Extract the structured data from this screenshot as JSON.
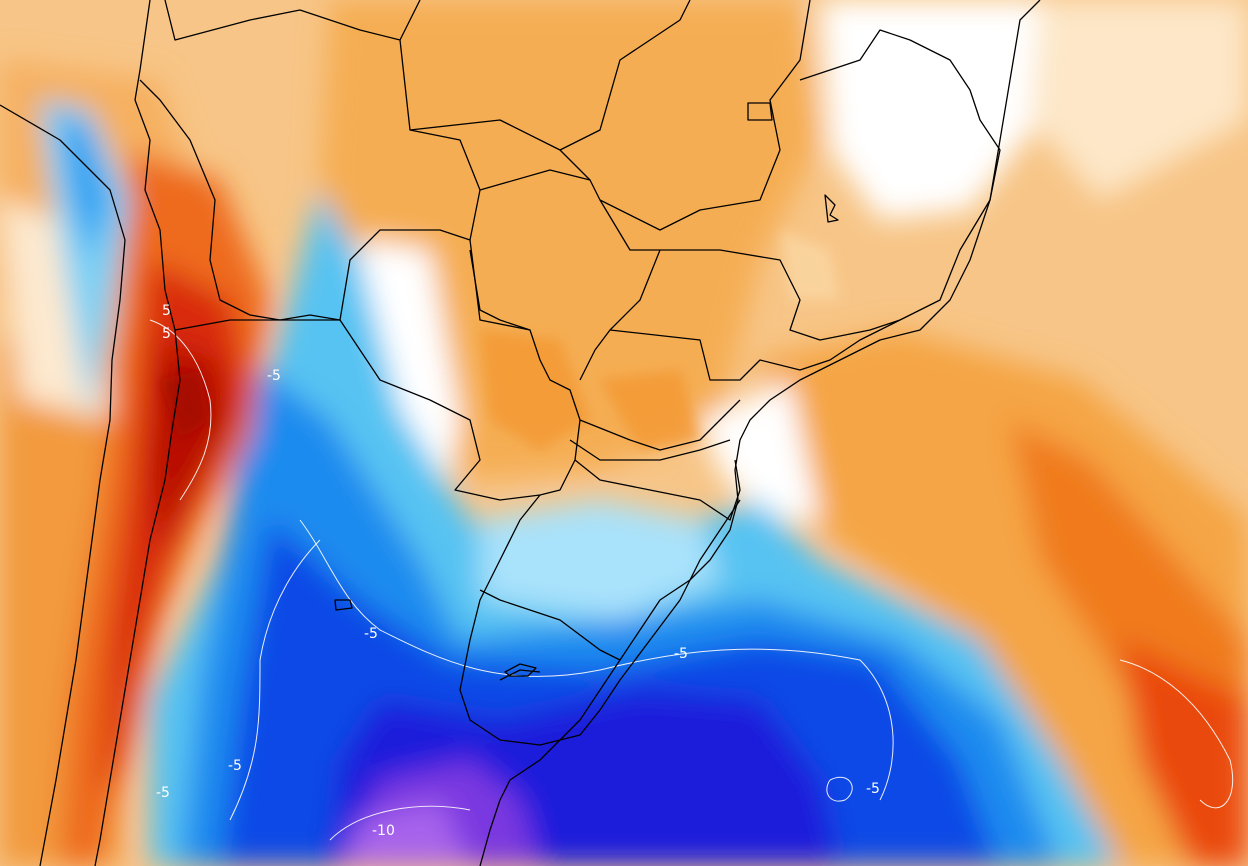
{
  "map": {
    "kind": "temperature anomaly shaded map",
    "region": "South America (southern half)",
    "colors": {
      "warm_strong": "#d20a00",
      "warm_mid": "#f2781e",
      "warm_light": "#f5b25a",
      "warm_pale": "#fbd9a6",
      "neutral": "#ffffff",
      "cool_pale": "#cdeefc",
      "cool_light": "#56c6f5",
      "cool_mid": "#1a8ef0",
      "cool_deep": "#0a3fe8",
      "cool_darkest": "#2a10d8",
      "cool_violet": "#8a4ae6",
      "border": "#000000",
      "contour": "#ffffff"
    },
    "contour_labels": [
      {
        "text": "5"
      },
      {
        "text": "5"
      },
      {
        "text": "-5"
      },
      {
        "text": "-5"
      },
      {
        "text": "-5"
      },
      {
        "text": "-5"
      },
      {
        "text": "-5"
      },
      {
        "text": "-5"
      },
      {
        "text": "-10"
      }
    ]
  }
}
